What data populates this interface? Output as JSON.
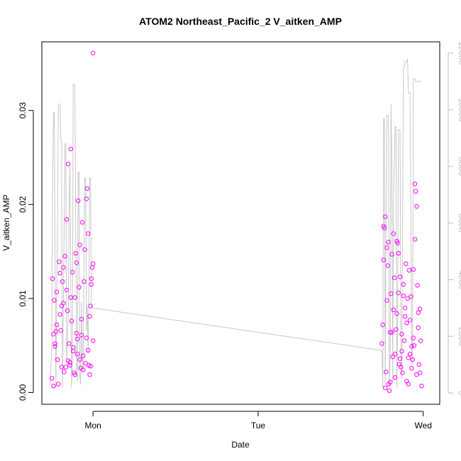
{
  "chart_data": {
    "type": "scatter",
    "title": "ATOM2 Northeast_Pacific_2 V_aitken_AMP",
    "xlabel": "Date",
    "ylabel": "V_aitken_AMP",
    "x_ticks": [
      {
        "t": 0.0,
        "label": "Mon"
      },
      {
        "t": 1.0,
        "label": "Tue"
      },
      {
        "t": 2.0,
        "label": "Wed"
      }
    ],
    "xlim": [
      -0.31,
      2.1
    ],
    "ylim": [
      -0.00125,
      0.0373
    ],
    "y_ticks": [
      0.0,
      0.01,
      0.02,
      0.03
    ],
    "y_tick_labels": [
      "0.00",
      "0.01",
      "0.02",
      "0.03"
    ],
    "y2lim": [
      -400,
      12400
    ],
    "y2_ticks": [
      0,
      2000,
      4000,
      6000,
      8000,
      10000,
      12000
    ],
    "y2_tick_labels": [
      "0",
      "2000",
      "4000",
      "6000",
      "8000",
      "10000",
      "12000"
    ],
    "colors": {
      "points": "#ff00ff",
      "line": "#c8c8c8",
      "right_axis": "#bebebe",
      "axis": "#000000"
    },
    "series": [
      {
        "kind": "points",
        "axis": "left",
        "x": [
          -0.25,
          -0.245,
          -0.24,
          -0.235,
          -0.23,
          -0.225,
          -0.22,
          -0.215,
          -0.21,
          -0.205,
          -0.2,
          -0.195,
          -0.19,
          -0.185,
          -0.18,
          -0.175,
          -0.17,
          -0.165,
          -0.16,
          -0.155,
          -0.15,
          -0.145,
          -0.14,
          -0.135,
          -0.13,
          -0.125,
          -0.12,
          -0.115,
          -0.11,
          -0.105,
          -0.1,
          -0.095,
          -0.09,
          -0.085,
          -0.08,
          -0.075,
          -0.07,
          -0.065,
          -0.06,
          -0.055,
          -0.05,
          -0.045,
          -0.04,
          -0.035,
          -0.03,
          -0.025,
          -0.02,
          -0.015,
          -0.01,
          -0.005,
          0.0,
          -0.24,
          -0.22,
          -0.2,
          -0.18,
          -0.16,
          -0.14,
          -0.12,
          -0.1,
          -0.08,
          -0.06,
          -0.04,
          -0.02,
          -0.01,
          0.0,
          -0.03,
          -0.07,
          -0.11,
          -0.15,
          -0.19,
          -0.23,
          0.0,
          -0.015,
          -0.095,
          -0.135,
          1.75,
          1.755,
          1.76,
          1.765,
          1.77,
          1.775,
          1.78,
          1.785,
          1.79,
          1.795,
          1.8,
          1.805,
          1.81,
          1.815,
          1.82,
          1.825,
          1.83,
          1.835,
          1.84,
          1.845,
          1.85,
          1.855,
          1.86,
          1.865,
          1.87,
          1.875,
          1.88,
          1.885,
          1.89,
          1.895,
          1.9,
          1.905,
          1.91,
          1.915,
          1.92,
          1.925,
          1.93,
          1.935,
          1.94,
          1.945,
          1.95,
          1.955,
          1.96,
          1.965,
          1.97,
          1.975,
          1.98,
          1.985,
          1.99,
          1.76,
          1.78,
          1.8,
          1.82,
          1.84,
          1.86,
          1.88,
          1.9,
          1.92,
          1.94,
          1.96,
          1.98,
          1.77,
          1.79,
          1.81,
          1.83,
          1.85,
          1.87,
          1.89,
          1.91,
          1.93,
          1.95,
          1.97
        ],
        "y": [
          0.0015,
          0.0121,
          0.0062,
          0.0098,
          0.0049,
          0.0065,
          0.0107,
          0.0035,
          0.0009,
          0.0139,
          0.0127,
          0.0066,
          0.0092,
          0.0118,
          0.0133,
          0.0022,
          0.0145,
          0.0027,
          0.0184,
          0.0087,
          0.0243,
          0.0052,
          0.0029,
          0.0259,
          0.0076,
          0.0128,
          0.0048,
          0.0021,
          0.0019,
          0.0148,
          0.0063,
          0.0057,
          0.0204,
          0.0112,
          0.0035,
          0.0026,
          0.0078,
          0.0181,
          0.0039,
          0.0118,
          0.0152,
          0.0031,
          0.0058,
          0.0217,
          0.0169,
          0.0029,
          0.0081,
          0.0092,
          0.0121,
          0.0133,
          0.0361,
          0.0007,
          0.0072,
          0.0083,
          0.0095,
          0.0109,
          0.0032,
          0.0044,
          0.0138,
          0.0157,
          0.0024,
          0.0206,
          0.0019,
          0.0115,
          0.0055,
          0.0045,
          0.0061,
          0.0101,
          0.0034,
          0.0027,
          0.0052,
          0.0137,
          0.0028,
          0.0041,
          0.0101,
          0.0052,
          0.0072,
          0.0141,
          0.0175,
          0.0187,
          0.0022,
          0.0098,
          0.0135,
          0.0009,
          0.0002,
          0.0064,
          0.0105,
          0.0147,
          0.0038,
          0.0169,
          0.0122,
          0.0016,
          0.0067,
          0.0084,
          0.0159,
          0.0106,
          0.003,
          0.0123,
          0.0027,
          0.0044,
          0.0021,
          0.0115,
          0.0055,
          0.0081,
          0.0137,
          0.0012,
          0.01,
          0.0009,
          0.013,
          0.0077,
          0.0102,
          0.0026,
          0.0035,
          0.0058,
          0.005,
          0.0163,
          0.0214,
          0.0198,
          0.0114,
          0.0069,
          0.003,
          0.0089,
          0.0055,
          0.0007,
          0.0177,
          0.0154,
          0.0011,
          0.0088,
          0.0161,
          0.0036,
          0.0103,
          0.0074,
          0.0041,
          0.0131,
          0.0019,
          0.0021,
          0.0005,
          0.016,
          0.0064,
          0.0041,
          0.0148,
          0.0062,
          0.009,
          0.0037,
          0.0049,
          0.0222,
          0.0085
        ]
      },
      {
        "kind": "line",
        "axis": "right",
        "x": [
          -0.26,
          -0.25,
          -0.245,
          -0.24,
          -0.235,
          -0.225,
          -0.22,
          -0.215,
          -0.21,
          -0.2,
          -0.195,
          -0.19,
          -0.185,
          -0.18,
          -0.17,
          -0.165,
          -0.16,
          -0.15,
          -0.145,
          -0.14,
          -0.13,
          -0.125,
          -0.12,
          -0.11,
          -0.1,
          -0.095,
          -0.09,
          -0.085,
          -0.08,
          -0.075,
          -0.07,
          -0.065,
          -0.06,
          -0.055,
          -0.05,
          -0.045,
          -0.04,
          -0.035,
          -0.03,
          -0.025,
          -0.02,
          -0.015,
          -0.01,
          -0.005,
          0.0,
          1.75,
          1.755,
          1.76,
          1.765,
          1.77,
          1.775,
          1.78,
          1.79,
          1.795,
          1.8,
          1.805,
          1.81,
          1.815,
          1.82,
          1.83,
          1.835,
          1.84,
          1.845,
          1.85,
          1.86,
          1.865,
          1.87,
          1.88,
          1.885,
          1.89,
          1.9,
          1.905,
          1.91,
          1.92,
          1.93,
          1.935,
          1.94,
          1.95,
          1.955,
          1.96,
          1.965,
          1.97,
          1.975,
          1.98,
          1.985,
          1.99
        ],
        "y": [
          300,
          1500,
          7000,
          9900,
          9900,
          200,
          3500,
          6000,
          10200,
          10200,
          8900,
          8900,
          200,
          3000,
          8800,
          8800,
          1000,
          2800,
          6600,
          8000,
          200,
          1200,
          10900,
          10900,
          1000,
          400,
          7800,
          7800,
          600,
          300,
          3200,
          1200,
          800,
          4500,
          7600,
          7600,
          2200,
          3100,
          1400,
          3800,
          7600,
          7600,
          3000,
          3000,
          3000,
          1500,
          200,
          9700,
          9700,
          300,
          6000,
          9800,
          9800,
          200,
          1500,
          10200,
          8200,
          400,
          6800,
          9400,
          9400,
          200,
          2200,
          9300,
          9300,
          800,
          500,
          11500,
          11500,
          11700,
          11700,
          11800,
          10600,
          10600,
          1800,
          1000,
          11100,
          11100,
          11000,
          11000,
          11000,
          11000,
          11000,
          11000,
          11000,
          11000
        ]
      }
    ]
  }
}
